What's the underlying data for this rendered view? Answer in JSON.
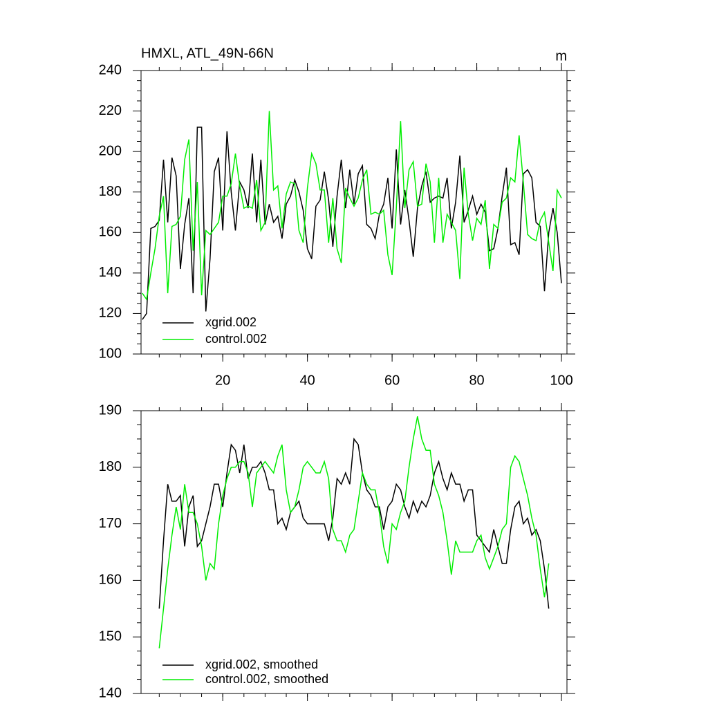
{
  "chart_data": [
    {
      "type": "line",
      "title": "HMXL, ATL_49N-66N",
      "units": "m",
      "x": [
        1,
        2,
        3,
        4,
        5,
        6,
        7,
        8,
        9,
        10,
        11,
        12,
        13,
        14,
        15,
        16,
        17,
        18,
        19,
        20,
        21,
        22,
        23,
        24,
        25,
        26,
        27,
        28,
        29,
        30,
        31,
        32,
        33,
        34,
        35,
        36,
        37,
        38,
        39,
        40,
        41,
        42,
        43,
        44,
        45,
        46,
        47,
        48,
        49,
        50,
        51,
        52,
        53,
        54,
        55,
        56,
        57,
        58,
        59,
        60,
        61,
        62,
        63,
        64,
        65,
        66,
        67,
        68,
        69,
        70,
        71,
        72,
        73,
        74,
        75,
        76,
        77,
        78,
        79,
        80,
        81,
        82,
        83,
        84,
        85,
        86,
        87,
        88,
        89,
        90,
        91,
        92,
        93,
        94,
        95,
        96,
        97,
        98,
        99,
        100
      ],
      "series": [
        {
          "name": "xgrid.002",
          "color": "#000000",
          "values": [
            117,
            120,
            162,
            163,
            166,
            196,
            165,
            197,
            188,
            142,
            164,
            177,
            130,
            212,
            212,
            121,
            147,
            190,
            197,
            161,
            210,
            180,
            161,
            185,
            181,
            172,
            199,
            165,
            196,
            164,
            174,
            165,
            168,
            157,
            174,
            178,
            186,
            180,
            171,
            152,
            147,
            173,
            176,
            190,
            176,
            153,
            178,
            196,
            172,
            191,
            174,
            189,
            193,
            164,
            162,
            157,
            169,
            174,
            187,
            162,
            201,
            164,
            181,
            166,
            148,
            172,
            183,
            190,
            175,
            177,
            178,
            177,
            187,
            162,
            175,
            198,
            165,
            171,
            178,
            169,
            174,
            170,
            151,
            152,
            162,
            178,
            192,
            154,
            155,
            149,
            189,
            191,
            187,
            165,
            163,
            131,
            160,
            172,
            160,
            135
          ]
        },
        {
          "name": "control.002",
          "color": "#00ee00",
          "values": [
            130,
            127,
            140,
            152,
            168,
            178,
            130,
            163,
            164,
            168,
            196,
            206,
            151,
            185,
            129,
            161,
            159,
            162,
            165,
            178,
            178,
            184,
            199,
            183,
            172,
            173,
            172,
            186,
            161,
            165,
            220,
            181,
            183,
            162,
            179,
            185,
            184,
            161,
            155,
            182,
            199,
            194,
            181,
            181,
            155,
            177,
            152,
            145,
            182,
            177,
            173,
            177,
            186,
            191,
            169,
            170,
            169,
            171,
            149,
            139,
            172,
            215,
            172,
            191,
            195,
            173,
            174,
            194,
            185,
            155,
            187,
            155,
            169,
            165,
            161,
            137,
            192,
            169,
            156,
            167,
            164,
            176,
            142,
            164,
            162,
            175,
            177,
            187,
            185,
            208,
            185,
            159,
            157,
            156,
            166,
            170,
            155,
            141,
            181,
            177
          ]
        }
      ],
      "xlim": [
        0.7,
        101.3
      ],
      "xticks": [
        20,
        40,
        60,
        80,
        100
      ],
      "show_xtick_labels": true,
      "ylim": [
        100,
        240
      ],
      "yticks": [
        100,
        120,
        140,
        160,
        180,
        200,
        220,
        240
      ]
    },
    {
      "type": "line",
      "x": [
        5,
        6,
        7,
        8,
        9,
        10,
        11,
        12,
        13,
        14,
        15,
        16,
        17,
        18,
        19,
        20,
        21,
        22,
        23,
        24,
        25,
        26,
        27,
        28,
        29,
        30,
        31,
        32,
        33,
        34,
        35,
        36,
        37,
        38,
        39,
        40,
        41,
        42,
        43,
        44,
        45,
        46,
        47,
        48,
        49,
        50,
        51,
        52,
        53,
        54,
        55,
        56,
        57,
        58,
        59,
        60,
        61,
        62,
        63,
        64,
        65,
        66,
        67,
        68,
        69,
        70,
        71,
        72,
        73,
        74,
        75,
        76,
        77,
        78,
        79,
        80,
        81,
        82,
        83,
        84,
        85,
        86,
        87,
        88,
        89,
        90,
        91,
        92,
        93,
        94,
        95,
        96,
        97
      ],
      "series": [
        {
          "name": "xgrid.002, smoothed",
          "color": "#000000",
          "values": [
            155,
            167,
            177,
            174,
            174,
            175,
            166,
            173,
            175,
            166,
            167,
            170,
            173,
            177,
            177,
            173,
            179,
            184,
            183,
            179,
            184,
            178,
            180,
            180,
            181,
            179,
            176,
            176,
            170,
            171,
            169,
            172,
            173,
            174,
            171,
            170,
            170,
            170,
            170,
            170,
            167,
            171,
            178,
            177,
            179,
            177,
            185,
            184,
            179,
            176,
            175,
            173,
            173,
            169,
            173,
            174,
            177,
            176,
            173,
            171,
            174,
            172,
            174,
            173,
            175,
            179,
            181,
            178,
            176,
            179,
            177,
            177,
            174,
            176,
            176,
            168,
            167,
            166,
            165,
            169,
            166,
            163,
            163,
            169,
            173,
            174,
            170,
            171,
            168,
            169,
            167,
            162,
            155
          ]
        },
        {
          "name": "control.002, smoothed",
          "color": "#00ee00",
          "values": [
            148,
            155,
            162,
            168,
            173,
            169,
            177,
            172,
            172,
            170,
            166,
            160,
            163,
            162,
            170,
            175,
            178,
            180,
            180,
            181,
            181,
            179,
            173,
            179,
            180,
            181,
            180,
            179,
            182,
            184,
            176,
            172,
            173,
            176,
            180,
            181,
            180,
            179,
            179,
            181,
            178,
            169,
            167,
            167,
            165,
            168,
            169,
            174,
            179,
            177,
            176,
            176,
            172,
            166,
            163,
            170,
            169,
            172,
            174,
            180,
            185,
            189,
            185,
            183,
            183,
            177,
            175,
            172,
            167,
            161,
            167,
            165,
            165,
            165,
            165,
            167,
            168,
            164,
            162,
            164,
            166,
            169,
            170,
            180,
            182,
            181,
            178,
            175,
            171,
            168,
            162,
            157,
            163
          ]
        }
      ],
      "xlim": [
        0.7,
        101.3
      ],
      "xticks": [
        20,
        40,
        60,
        80,
        100
      ],
      "show_xtick_labels": false,
      "ylim": [
        140,
        190
      ],
      "yticks": [
        140,
        150,
        160,
        170,
        180,
        190
      ]
    }
  ]
}
